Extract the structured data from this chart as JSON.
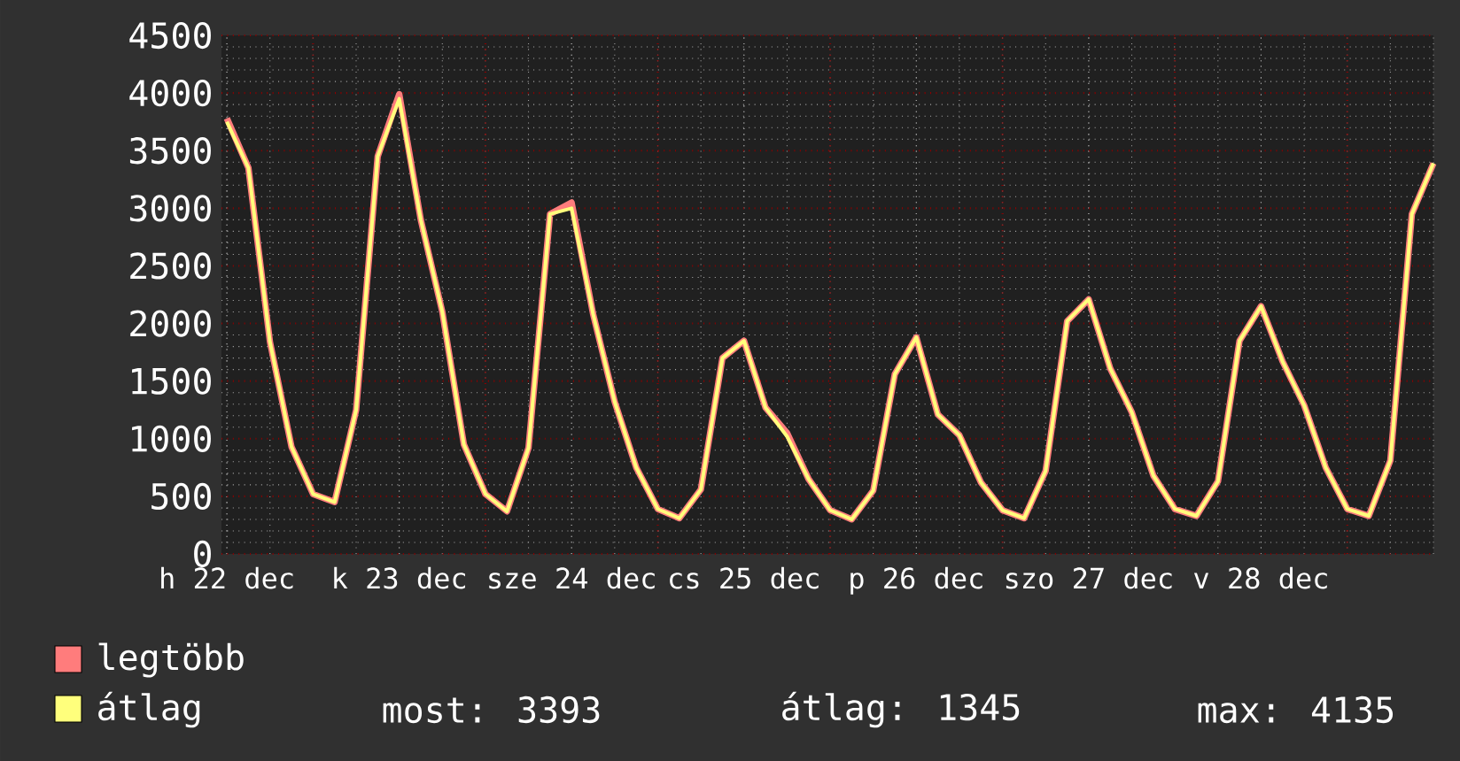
{
  "chart_data": {
    "type": "line",
    "categories": [
      "h 22 dec",
      null,
      null,
      null,
      null,
      null,
      null,
      null,
      "k 23 dec",
      null,
      null,
      null,
      null,
      null,
      null,
      null,
      "sze 24 dec",
      null,
      null,
      null,
      null,
      null,
      null,
      null,
      "cs 25 dec",
      null,
      null,
      null,
      null,
      null,
      null,
      null,
      "p 26 dec",
      null,
      null,
      null,
      null,
      null,
      null,
      null,
      "szo 27 dec",
      null,
      null,
      null,
      null,
      null,
      null,
      null,
      "v 28 dec",
      null,
      null,
      null,
      null,
      null,
      null,
      null,
      null
    ],
    "series": [
      {
        "name": "legtöbb",
        "color": "#ff7c7c",
        "values": [
          3780,
          3350,
          1840,
          930,
          520,
          450,
          1250,
          3450,
          3990,
          2900,
          2100,
          950,
          520,
          370,
          920,
          2950,
          3050,
          2080,
          1320,
          750,
          390,
          310,
          560,
          1700,
          1850,
          1270,
          1050,
          650,
          380,
          300,
          550,
          1560,
          1880,
          1210,
          1030,
          620,
          380,
          310,
          720,
          2020,
          2210,
          1610,
          1230,
          680,
          390,
          330,
          630,
          1850,
          2150,
          1670,
          1290,
          750,
          390,
          330,
          810,
          2950,
          3390
        ]
      },
      {
        "name": "átlag",
        "color": "#ffff7c",
        "values": [
          3750,
          3350,
          1840,
          930,
          520,
          450,
          1250,
          3450,
          3950,
          2900,
          2100,
          950,
          520,
          370,
          920,
          2950,
          3000,
          2080,
          1320,
          750,
          390,
          310,
          560,
          1700,
          1850,
          1270,
          1020,
          650,
          380,
          300,
          550,
          1560,
          1880,
          1210,
          1030,
          620,
          380,
          310,
          720,
          2020,
          2210,
          1610,
          1230,
          680,
          390,
          330,
          630,
          1850,
          2150,
          1670,
          1290,
          750,
          390,
          330,
          810,
          2950,
          3390
        ]
      }
    ],
    "ylim": [
      0,
      4500
    ],
    "yticks": [
      0,
      500,
      1000,
      1500,
      2000,
      2500,
      3000,
      3500,
      4000,
      4500
    ],
    "grid": true,
    "legend": "bottom",
    "marker": "none",
    "line_style": "solid",
    "annotations": [
      "most: 3393",
      "átlag: 1345",
      "max: 4135"
    ]
  }
}
